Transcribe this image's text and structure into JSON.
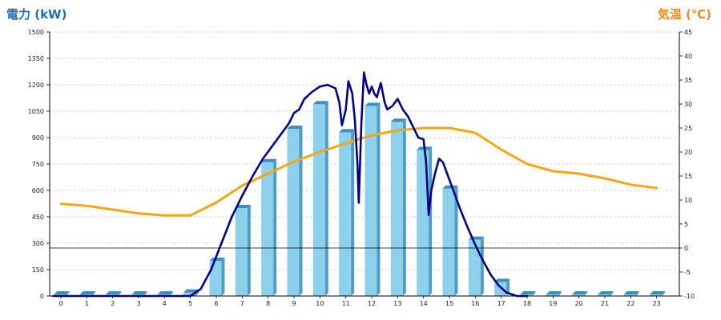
{
  "chart_data": {
    "type": "bar",
    "title_left": "電力 (kW)",
    "title_right": "気温 (℃)",
    "categories": [
      "0",
      "1",
      "2",
      "3",
      "4",
      "5",
      "6",
      "7",
      "8",
      "9",
      "10",
      "11",
      "12",
      "13",
      "14",
      "15",
      "16",
      "17",
      "18",
      "19",
      "20",
      "21",
      "22",
      "23"
    ],
    "y_left": {
      "min": 0,
      "max": 1500,
      "ticks": [
        0,
        150,
        300,
        450,
        600,
        750,
        900,
        1050,
        1200,
        1350,
        1500
      ]
    },
    "y_right": {
      "min": -10,
      "max": 45,
      "ticks": [
        -10,
        -5,
        0,
        5,
        10,
        15,
        20,
        25,
        30,
        35,
        40,
        45
      ]
    },
    "grid": true,
    "colors": {
      "bar_front": "#8cd0ec",
      "bar_side": "#4f9dc4",
      "bar_top": "#3f8db8",
      "power_line": "#000088",
      "temp_line": "#f5a614",
      "left_title": "#1f6fb2",
      "right_title": "#ef8a1c"
    },
    "series": [
      {
        "kind": "bar",
        "axis": "left",
        "values": [
          0,
          0,
          0,
          0,
          0,
          20,
          200,
          500,
          760,
          950,
          1090,
          930,
          1080,
          990,
          830,
          610,
          320,
          80,
          0,
          0,
          0,
          0,
          0,
          0
        ]
      },
      {
        "kind": "line",
        "axis": "left",
        "points": [
          [
            -0.3,
            0
          ],
          [
            5.0,
            0
          ],
          [
            5.4,
            40
          ],
          [
            5.8,
            150
          ],
          [
            6.2,
            300
          ],
          [
            6.6,
            450
          ],
          [
            7.0,
            570
          ],
          [
            7.4,
            680
          ],
          [
            7.8,
            780
          ],
          [
            8.2,
            860
          ],
          [
            8.5,
            920
          ],
          [
            8.8,
            980
          ],
          [
            9.0,
            1040
          ],
          [
            9.2,
            1060
          ],
          [
            9.4,
            1120
          ],
          [
            9.7,
            1160
          ],
          [
            10.0,
            1190
          ],
          [
            10.3,
            1200
          ],
          [
            10.6,
            1180
          ],
          [
            10.75,
            1100
          ],
          [
            10.85,
            970
          ],
          [
            11.0,
            1060
          ],
          [
            11.1,
            1220
          ],
          [
            11.25,
            1150
          ],
          [
            11.35,
            1000
          ],
          [
            11.45,
            750
          ],
          [
            11.5,
            530
          ],
          [
            11.6,
            980
          ],
          [
            11.7,
            1270
          ],
          [
            11.8,
            1200
          ],
          [
            11.9,
            1150
          ],
          [
            12.0,
            1190
          ],
          [
            12.1,
            1150
          ],
          [
            12.2,
            1130
          ],
          [
            12.35,
            1210
          ],
          [
            12.5,
            1100
          ],
          [
            12.6,
            1060
          ],
          [
            12.8,
            1080
          ],
          [
            13.0,
            1120
          ],
          [
            13.2,
            1060
          ],
          [
            13.4,
            1020
          ],
          [
            13.6,
            960
          ],
          [
            13.8,
            900
          ],
          [
            14.0,
            890
          ],
          [
            14.1,
            760
          ],
          [
            14.2,
            460
          ],
          [
            14.3,
            600
          ],
          [
            14.45,
            700
          ],
          [
            14.6,
            780
          ],
          [
            14.75,
            760
          ],
          [
            14.9,
            700
          ],
          [
            15.1,
            620
          ],
          [
            15.4,
            500
          ],
          [
            15.7,
            390
          ],
          [
            16.0,
            290
          ],
          [
            16.3,
            200
          ],
          [
            16.6,
            120
          ],
          [
            16.9,
            60
          ],
          [
            17.2,
            20
          ],
          [
            17.6,
            0
          ],
          [
            18.0,
            0
          ]
        ]
      },
      {
        "kind": "line",
        "axis": "right",
        "values": [
          9.2,
          8.8,
          8.0,
          7.2,
          6.8,
          6.8,
          9.5,
          13.0,
          15.5,
          18.0,
          20.0,
          21.8,
          23.5,
          24.5,
          25.0,
          25.0,
          24.0,
          20.5,
          17.5,
          16.0,
          15.5,
          14.5,
          13.2,
          12.5
        ]
      }
    ]
  }
}
